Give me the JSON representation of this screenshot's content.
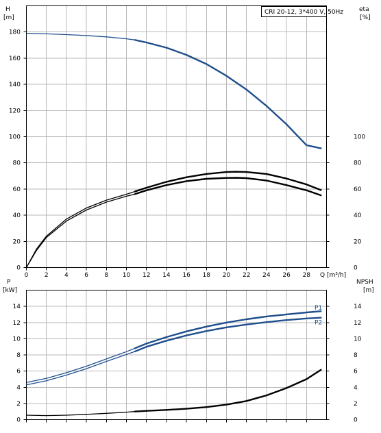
{
  "chart_data": [
    {
      "type": "line",
      "title": "CRI 20-12, 3*400 V, 50Hz",
      "left_axis_label": [
        "H",
        "[m]"
      ],
      "right_axis_label": [
        "eta",
        "[%]"
      ],
      "xlabel": "Q [m³/h]",
      "xlim": [
        0,
        30
      ],
      "x_ticks": [
        0,
        2,
        4,
        6,
        8,
        10,
        12,
        14,
        16,
        18,
        20,
        22,
        24,
        26,
        28
      ],
      "ylim_left": [
        0,
        200
      ],
      "y_ticks_left": [
        0,
        20,
        40,
        60,
        80,
        100,
        120,
        140,
        160,
        180
      ],
      "ylim_right": [
        0,
        200
      ],
      "y_ticks_right": [
        0,
        20,
        40,
        60,
        80,
        100
      ],
      "grid": true,
      "series": [
        {
          "name": "H",
          "axis": "left",
          "color": "#1f4e8c",
          "x": [
            0,
            2,
            4,
            6,
            8,
            10,
            10.8,
            12,
            14,
            16,
            18,
            20,
            22,
            24,
            26,
            28,
            29.5
          ],
          "y": [
            179,
            178.6,
            178,
            177.3,
            176.3,
            174.8,
            174,
            172,
            168,
            162.5,
            155.5,
            146.5,
            136,
            123.5,
            109.5,
            93.5,
            91
          ]
        },
        {
          "axis": "right",
          "color": "#000000",
          "x": [
            0,
            1,
            2,
            4,
            6,
            8,
            10,
            10.8,
            12,
            14,
            16,
            18,
            20,
            21,
            22,
            24,
            26,
            28,
            29.5
          ],
          "y": [
            0,
            14,
            24,
            37,
            45.5,
            51.5,
            56,
            58,
            61,
            65.5,
            69,
            71.5,
            73,
            73.2,
            73,
            71.5,
            68,
            63.5,
            59
          ]
        },
        {
          "axis": "right",
          "color": "#000000",
          "x": [
            0,
            1,
            2,
            4,
            6,
            8,
            10,
            10.8,
            12,
            14,
            16,
            18,
            20,
            21,
            22,
            24,
            26,
            28,
            29.5
          ],
          "y": [
            0,
            13,
            23,
            35.5,
            44,
            50,
            54.5,
            56,
            59,
            63,
            66,
            67.8,
            68.5,
            68.6,
            68.3,
            66.5,
            63,
            59,
            55
          ]
        }
      ]
    },
    {
      "type": "line",
      "left_axis_label": [
        "P",
        "[kW]"
      ],
      "right_axis_label": [
        "NPSH",
        "[m]"
      ],
      "xlim": [
        0,
        30
      ],
      "ylim_left": [
        0,
        16
      ],
      "y_ticks_left": [
        0,
        2,
        4,
        6,
        8,
        10,
        12,
        14
      ],
      "ylim_right": [
        0,
        16
      ],
      "y_ticks_right": [
        0,
        2,
        4,
        6,
        8,
        10,
        12,
        14
      ],
      "grid": true,
      "series": [
        {
          "name": "P1",
          "axis": "left",
          "color": "#1f4e8c",
          "x": [
            0,
            2,
            4,
            6,
            8,
            10,
            10.8,
            12,
            14,
            16,
            18,
            20,
            22,
            24,
            26,
            28,
            29.5
          ],
          "y": [
            4.6,
            5.1,
            5.8,
            6.6,
            7.5,
            8.4,
            8.8,
            9.4,
            10.2,
            10.9,
            11.5,
            12.0,
            12.4,
            12.75,
            13.0,
            13.25,
            13.4
          ]
        },
        {
          "name": "P2",
          "axis": "left",
          "color": "#1f4e8c",
          "x": [
            0,
            2,
            4,
            6,
            8,
            10,
            10.8,
            12,
            14,
            16,
            18,
            20,
            22,
            24,
            26,
            28,
            29.5
          ],
          "y": [
            4.3,
            4.8,
            5.5,
            6.3,
            7.2,
            8.05,
            8.4,
            9.0,
            9.75,
            10.4,
            10.95,
            11.4,
            11.75,
            12.05,
            12.3,
            12.5,
            12.6
          ]
        },
        {
          "axis": "right",
          "color": "#000000",
          "x": [
            0,
            2,
            4,
            6,
            8,
            10,
            10.8,
            12,
            14,
            16,
            18,
            20,
            22,
            24,
            26,
            28,
            29.5
          ],
          "y": [
            0.55,
            0.5,
            0.55,
            0.65,
            0.78,
            0.92,
            1.0,
            1.08,
            1.2,
            1.35,
            1.55,
            1.85,
            2.3,
            3.0,
            3.9,
            5.0,
            6.2
          ]
        }
      ]
    }
  ]
}
